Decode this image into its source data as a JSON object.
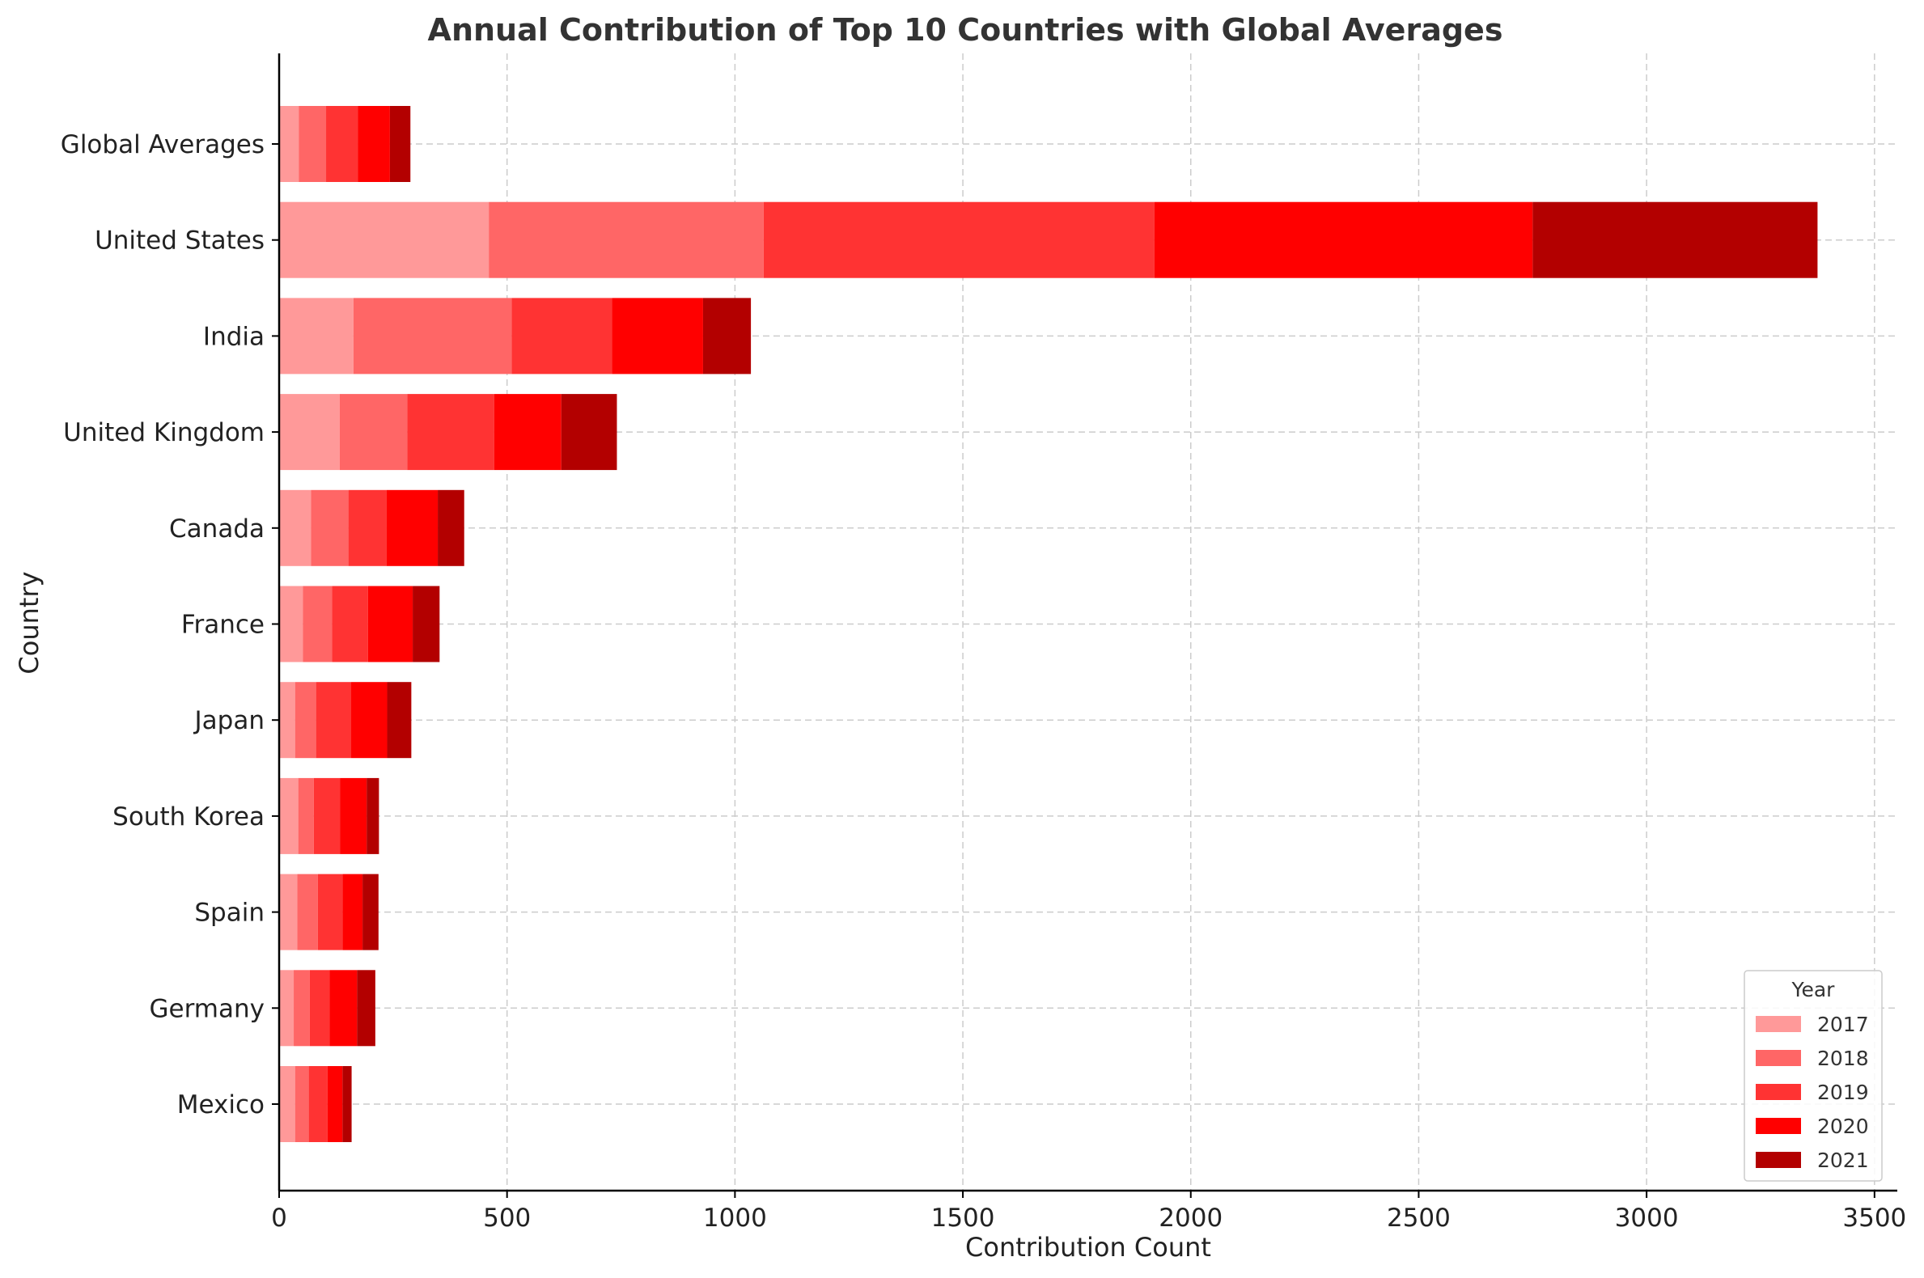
{
  "chart_data": {
    "type": "bar",
    "orientation": "horizontal",
    "stacked": true,
    "title": "Annual Contribution of Top 10 Countries with Global Averages",
    "xlabel": "Contribution Count",
    "ylabel": "Country",
    "xlim": [
      0,
      3550
    ],
    "xticks": [
      0,
      500,
      1000,
      1500,
      2000,
      2500,
      3000,
      3500
    ],
    "grid": true,
    "legend_title": "Year",
    "legend_position": "lower-right",
    "categories": [
      "Global Averages",
      "United States",
      "India",
      "United Kingdom",
      "Canada",
      "France",
      "Japan",
      "South Korea",
      "Spain",
      "Germany",
      "Mexico"
    ],
    "series": [
      {
        "name": "2017",
        "color": "#ff9999",
        "values": [
          43,
          460,
          163,
          133,
          70,
          52,
          35,
          42,
          40,
          32,
          35
        ]
      },
      {
        "name": "2018",
        "color": "#ff6666",
        "values": [
          60,
          603,
          347,
          148,
          82,
          64,
          46,
          34,
          45,
          35,
          30
        ]
      },
      {
        "name": "2019",
        "color": "#ff3333",
        "values": [
          70,
          857,
          220,
          191,
          84,
          79,
          77,
          58,
          54,
          44,
          41
        ]
      },
      {
        "name": "2020",
        "color": "#ff0000",
        "values": [
          70,
          830,
          200,
          147,
          112,
          98,
          79,
          58,
          44,
          60,
          33
        ]
      },
      {
        "name": "2021",
        "color": "#b30000",
        "values": [
          45,
          625,
          105,
          122,
          58,
          59,
          53,
          27,
          35,
          40,
          20
        ]
      }
    ]
  }
}
